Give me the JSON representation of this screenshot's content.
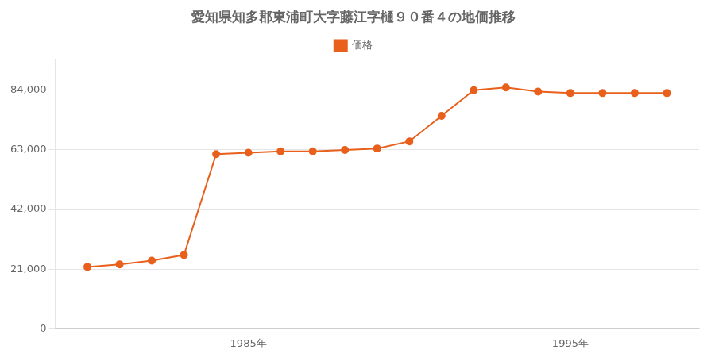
{
  "chart_data": {
    "type": "line",
    "title": "愛知県知多郡東浦町大字藤江字樋９０番４の地価推移",
    "x": [
      1980,
      1981,
      1982,
      1983,
      1984,
      1985,
      1986,
      1987,
      1988,
      1989,
      1990,
      1991,
      1992,
      1993,
      1994,
      1995,
      1996,
      1997,
      1998
    ],
    "series": [
      {
        "name": "価格",
        "color": "#e8601c",
        "values": [
          21800,
          22700,
          24000,
          26000,
          61500,
          62000,
          62500,
          62500,
          63000,
          63500,
          66000,
          75000,
          84000,
          85000,
          83500,
          83000,
          83000,
          83000,
          83000
        ]
      }
    ],
    "xlim": [
      1979,
      1999
    ],
    "xticks": [
      {
        "value": 1985,
        "label": "1985年"
      },
      {
        "value": 1995,
        "label": "1995年"
      }
    ],
    "ylim": [
      0,
      95000
    ],
    "yticks": [
      0,
      {
        "value": 21000,
        "label": "21,000"
      },
      {
        "value": 42000,
        "label": "42,000"
      },
      {
        "value": 63000,
        "label": "63,000"
      },
      {
        "value": 84000,
        "label": "84,000"
      }
    ],
    "grid": "y",
    "legend": "top",
    "marker": "circle",
    "line_style": "solid"
  }
}
